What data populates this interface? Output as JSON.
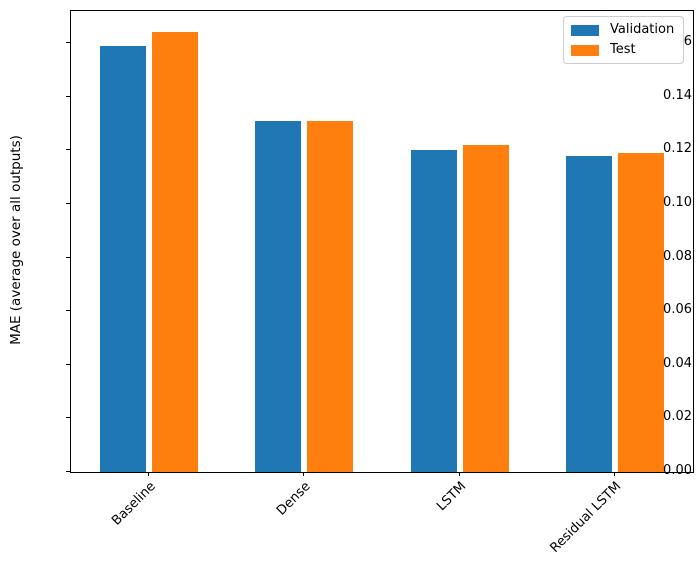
{
  "figure": {
    "background": "#ffffff",
    "axes_frame_color": "#000000"
  },
  "chart_data": {
    "type": "bar",
    "categories": [
      "Baseline",
      "Dense",
      "LSTM",
      "Residual LSTM"
    ],
    "series": [
      {
        "name": "Validation",
        "color": "#1f77b4",
        "values": [
          0.159,
          0.131,
          0.12,
          0.118
        ]
      },
      {
        "name": "Test",
        "color": "#ff7f0e",
        "values": [
          0.164,
          0.131,
          0.122,
          0.119
        ]
      }
    ],
    "title": "",
    "xlabel": "",
    "ylabel": "MAE (average over all outputs)",
    "ylim": [
      0,
      0.172
    ],
    "yticks": [
      0.0,
      0.02,
      0.04,
      0.06,
      0.08,
      0.1,
      0.12,
      0.14,
      0.16
    ],
    "ytick_decimals": 2,
    "grid": false,
    "x_tick_rotation_deg": 45,
    "legend": {
      "position": "upper right",
      "entries": [
        "Validation",
        "Test"
      ]
    }
  }
}
